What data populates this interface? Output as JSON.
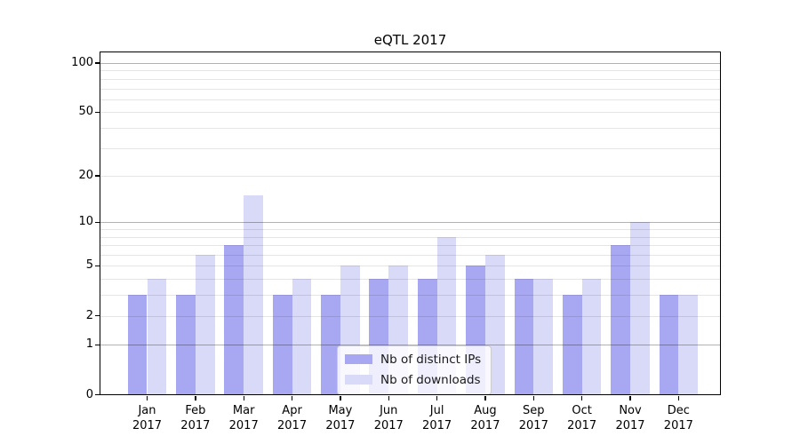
{
  "chart_data": {
    "type": "bar",
    "title": "eQTL 2017",
    "categories": [
      "Jan",
      "Feb",
      "Mar",
      "Apr",
      "May",
      "Jun",
      "Jul",
      "Aug",
      "Sep",
      "Oct",
      "Nov",
      "Dec"
    ],
    "x_year": "2017",
    "series": [
      {
        "name": "Nb of distinct IPs",
        "color": "#a8a8f2",
        "values": [
          3,
          3,
          7,
          3,
          3,
          4,
          4,
          5,
          4,
          3,
          7,
          3
        ]
      },
      {
        "name": "Nb of downloads",
        "color": "#d9d9f8",
        "values": [
          4,
          6,
          15,
          4,
          5,
          5,
          8,
          6,
          4,
          4,
          10,
          3
        ]
      }
    ],
    "y_axis": {
      "scale": "log1p",
      "ticks": [
        0,
        1,
        2,
        5,
        10,
        20,
        50,
        100
      ],
      "major_gridlines": [
        1,
        10,
        100
      ],
      "minor_gridlines": [
        2,
        3,
        4,
        5,
        6,
        7,
        8,
        9,
        20,
        30,
        40,
        50,
        60,
        70,
        80,
        90
      ],
      "ylim": [
        0,
        116
      ]
    },
    "grid": true,
    "legend": {
      "position": "lower center"
    }
  }
}
